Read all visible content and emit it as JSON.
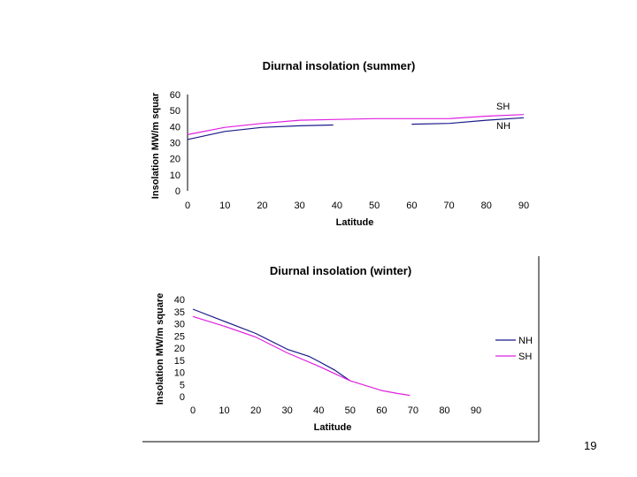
{
  "page": {
    "number": "19"
  },
  "colors": {
    "nh": "#1a1a8a",
    "sh": "#e020e0",
    "axis": "#000000"
  },
  "chart_data": [
    {
      "type": "line",
      "title": "Diurnal insolation (summer)",
      "xlabel": "Latitude",
      "ylabel": "Insolation MW/m squar",
      "xlim": [
        0,
        90
      ],
      "ylim": [
        0,
        60
      ],
      "xticks": [
        "0",
        "10",
        "20",
        "30",
        "40",
        "50",
        "60",
        "70",
        "80",
        "90"
      ],
      "yticks": [
        "0",
        "10",
        "20",
        "30",
        "40",
        "50",
        "60"
      ],
      "legend": {
        "placement": "right-inline"
      },
      "series": [
        {
          "name": "SH",
          "color": "#e020e0",
          "x": [
            0,
            10,
            20,
            30,
            40,
            50,
            60,
            70,
            80,
            90
          ],
          "y": [
            35,
            39.5,
            42,
            44,
            44.5,
            45,
            45,
            45,
            46.5,
            47.5
          ]
        },
        {
          "name": "NH",
          "color": "#1a1a8a",
          "segments": [
            {
              "x": [
                0,
                10,
                20,
                30,
                39
              ],
              "y": [
                32,
                37,
                39.5,
                40.5,
                41
              ]
            },
            {
              "x": [
                60,
                70,
                80,
                90
              ],
              "y": [
                41.5,
                42,
                44,
                45.5
              ]
            }
          ]
        }
      ]
    },
    {
      "type": "line",
      "title": "Diurnal insolation (winter)",
      "xlabel": "Latitude",
      "ylabel": "Insolation MW/m square",
      "xlim": [
        0,
        90
      ],
      "ylim": [
        0,
        40
      ],
      "xticks": [
        "0",
        "10",
        "20",
        "30",
        "40",
        "50",
        "60",
        "70",
        "80",
        "90"
      ],
      "yticks": [
        "0",
        "5",
        "10",
        "15",
        "20",
        "25",
        "30",
        "35",
        "40"
      ],
      "legend": {
        "placement": "right"
      },
      "series": [
        {
          "name": "NH",
          "color": "#1a1a8a",
          "x": [
            0,
            10,
            20,
            30,
            37,
            40,
            45,
            50
          ],
          "y": [
            36,
            31,
            26,
            19.5,
            16.5,
            14.5,
            11,
            6.5
          ]
        },
        {
          "name": "SH",
          "color": "#e020e0",
          "x": [
            0,
            10,
            20,
            30,
            40,
            50,
            60,
            65,
            69
          ],
          "y": [
            33,
            29,
            24.5,
            18,
            12.5,
            6.5,
            2.5,
            1.3,
            0.5
          ]
        }
      ]
    }
  ]
}
